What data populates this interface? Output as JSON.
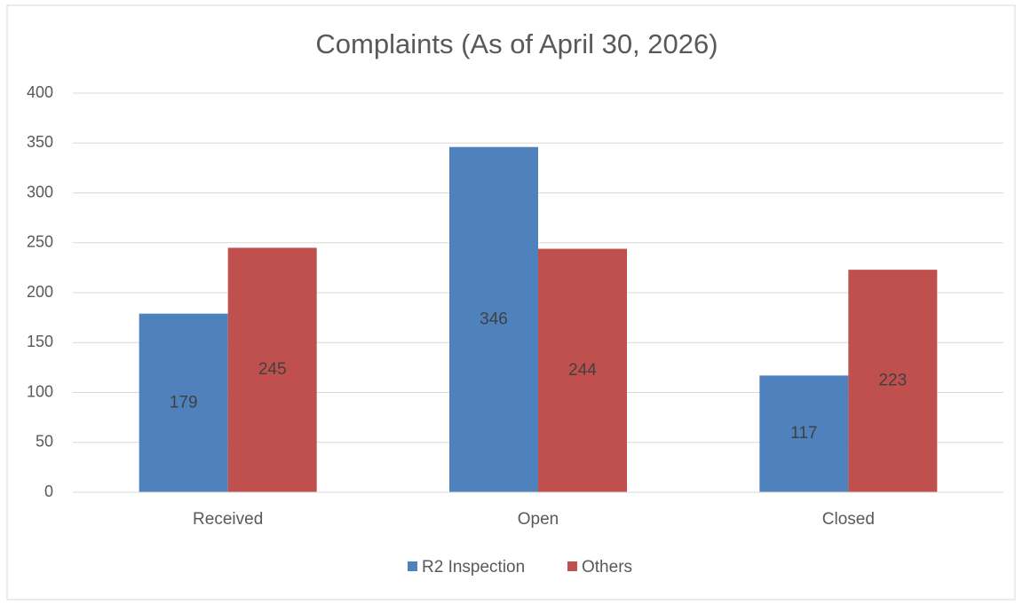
{
  "chart_data": {
    "type": "bar",
    "title": "Complaints (As of April 30, 2026)",
    "categories": [
      "Received",
      "Open",
      "Closed"
    ],
    "series": [
      {
        "name": "R2 Inspection",
        "color": "#4f81bd",
        "values": [
          179,
          346,
          117
        ]
      },
      {
        "name": "Others",
        "color": "#c0504d",
        "values": [
          245,
          244,
          223
        ]
      }
    ],
    "ylim": [
      0,
      400
    ],
    "yticks": [
      0,
      50,
      100,
      150,
      200,
      250,
      300,
      350,
      400
    ],
    "grid": true,
    "legend": "bottom",
    "data_labels": true
  }
}
